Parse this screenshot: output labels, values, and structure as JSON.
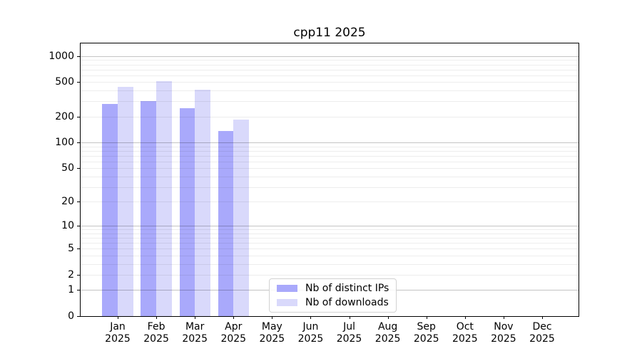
{
  "chart_data": {
    "type": "bar",
    "title": "cpp11 2025",
    "categories": [
      "Jan\n2025",
      "Feb\n2025",
      "Mar\n2025",
      "Apr\n2025",
      "May\n2025",
      "Jun\n2025",
      "Jul\n2025",
      "Aug\n2025",
      "Sep\n2025",
      "Oct\n2025",
      "Nov\n2025",
      "Dec\n2025"
    ],
    "series": [
      {
        "name": "Nb of distinct IPs",
        "color": "#a9a9fb",
        "values": [
          280,
          300,
          250,
          135,
          null,
          null,
          null,
          null,
          null,
          null,
          null,
          null
        ]
      },
      {
        "name": "Nb of downloads",
        "color": "#d9d9fb",
        "values": [
          445,
          510,
          410,
          185,
          null,
          null,
          null,
          null,
          null,
          null,
          null,
          null
        ]
      }
    ],
    "y_axis": {
      "scale": "log10(v+1)",
      "ticks": [
        0,
        1,
        2,
        5,
        10,
        20,
        50,
        100,
        200,
        500,
        1000
      ],
      "max": 1400,
      "major_gridlines": [
        1,
        10,
        100,
        1000
      ],
      "minor_gridlines": [
        2,
        3,
        4,
        5,
        6,
        7,
        8,
        9,
        20,
        30,
        40,
        50,
        60,
        70,
        80,
        90,
        200,
        300,
        400,
        500,
        600,
        700,
        800,
        900
      ]
    },
    "legend": {
      "position": "bottom-center"
    },
    "colors": {
      "grid_minor": "#ededed",
      "grid_major": "#c4c4c4",
      "axis": "#000000",
      "background": "#ffffff"
    }
  }
}
